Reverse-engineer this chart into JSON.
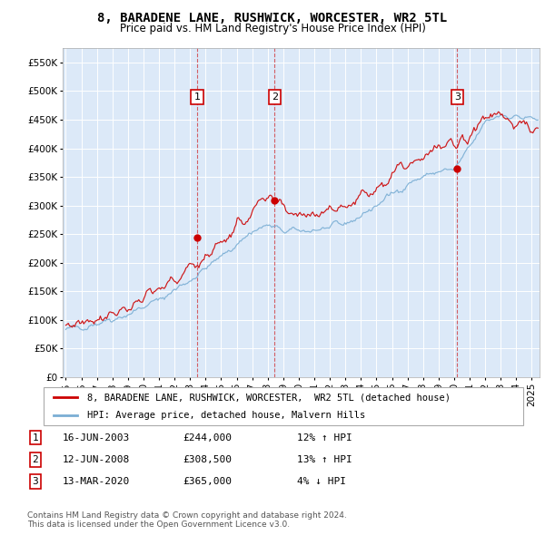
{
  "title": "8, BARADENE LANE, RUSHWICK, WORCESTER, WR2 5TL",
  "subtitle": "Price paid vs. HM Land Registry's House Price Index (HPI)",
  "ylabel_ticks": [
    "£0",
    "£50K",
    "£100K",
    "£150K",
    "£200K",
    "£250K",
    "£300K",
    "£350K",
    "£400K",
    "£450K",
    "£500K",
    "£550K"
  ],
  "ytick_values": [
    0,
    50000,
    100000,
    150000,
    200000,
    250000,
    300000,
    350000,
    400000,
    450000,
    500000,
    550000
  ],
  "ylim": [
    0,
    575000
  ],
  "xlim_start": 1994.8,
  "xlim_end": 2025.5,
  "xtick_years": [
    1995,
    1996,
    1997,
    1998,
    1999,
    2000,
    2001,
    2002,
    2003,
    2004,
    2005,
    2006,
    2007,
    2008,
    2009,
    2010,
    2011,
    2012,
    2013,
    2014,
    2015,
    2016,
    2017,
    2018,
    2019,
    2020,
    2021,
    2022,
    2023,
    2024,
    2025
  ],
  "background_color": "#ffffff",
  "plot_bg_color": "#dce9f8",
  "grid_color": "#ffffff",
  "sale_color": "#cc0000",
  "hpi_color": "#7aaed4",
  "sale_label": "8, BARADENE LANE, RUSHWICK, WORCESTER,  WR2 5TL (detached house)",
  "hpi_label": "HPI: Average price, detached house, Malvern Hills",
  "transactions": [
    {
      "id": 1,
      "date": 2003.46,
      "price": 244000,
      "label": "1",
      "hpi_pct": "12%",
      "direction": "↑",
      "date_str": "16-JUN-2003",
      "price_str": "£244,000"
    },
    {
      "id": 2,
      "date": 2008.45,
      "price": 308500,
      "label": "2",
      "hpi_pct": "13%",
      "direction": "↑",
      "date_str": "12-JUN-2008",
      "price_str": "£308,500"
    },
    {
      "id": 3,
      "date": 2020.2,
      "price": 365000,
      "label": "3",
      "hpi_pct": "4%",
      "direction": "↓",
      "date_str": "13-MAR-2020",
      "price_str": "£365,000"
    }
  ],
  "copyright_text": "Contains HM Land Registry data © Crown copyright and database right 2024.\nThis data is licensed under the Open Government Licence v3.0.",
  "title_fontsize": 10,
  "subtitle_fontsize": 8.5,
  "tick_fontsize": 7.5,
  "legend_fontsize": 7.5,
  "table_fontsize": 8,
  "copyright_fontsize": 6.5
}
